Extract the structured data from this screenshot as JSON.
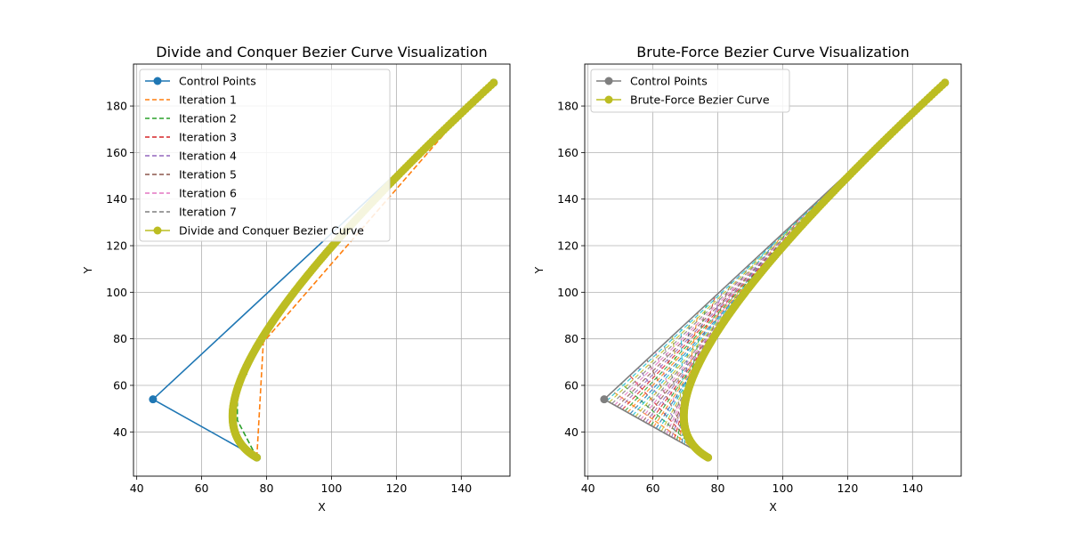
{
  "chart_data": [
    {
      "type": "line",
      "title": "Divide and Conquer Bezier Curve Visualization",
      "xlabel": "X",
      "ylabel": "Y",
      "xlim": [
        39,
        155
      ],
      "ylim": [
        21,
        198
      ],
      "xticks": [
        40,
        60,
        80,
        100,
        120,
        140
      ],
      "yticks": [
        40,
        60,
        80,
        100,
        120,
        140,
        160,
        180
      ],
      "grid": true,
      "legend_loc": "top-left",
      "control_points": [
        [
          77,
          29
        ],
        [
          45,
          54
        ],
        [
          150,
          190
        ]
      ],
      "series": [
        {
          "name": "Control Points",
          "color": "#1f77b4",
          "style": "solid-marker",
          "points": [
            [
              77,
              29
            ],
            [
              45,
              54
            ],
            [
              150,
              190
            ]
          ]
        },
        {
          "name": "Iteration 1",
          "color": "#ff7f0e",
          "style": "dashed",
          "points": [
            [
              77,
              29
            ],
            [
              79,
              78.5
            ],
            [
              136,
              170
            ]
          ]
        },
        {
          "name": "Iteration 2",
          "color": "#2ca02c",
          "style": "dashed",
          "points": [
            [
              77,
              29
            ],
            [
              71,
              45
            ],
            [
              71,
              60
            ],
            [
              74,
              65
            ]
          ]
        },
        {
          "name": "Iteration 3",
          "color": "#d62728",
          "style": "dashed",
          "points": []
        },
        {
          "name": "Iteration 4",
          "color": "#9467bd",
          "style": "dashed",
          "points": []
        },
        {
          "name": "Iteration 5",
          "color": "#8c564b",
          "style": "dashed",
          "points": []
        },
        {
          "name": "Iteration 6",
          "color": "#e377c2",
          "style": "dashed",
          "points": []
        },
        {
          "name": "Iteration 7",
          "color": "#7f7f7f",
          "style": "dashed",
          "points": []
        },
        {
          "name": "Divide and Conquer Bezier Curve",
          "color": "#bcbd22",
          "style": "bezier-marker"
        }
      ]
    },
    {
      "type": "line",
      "title": "Brute-Force Bezier Curve Visualization",
      "xlabel": "X",
      "ylabel": "Y",
      "xlim": [
        39,
        155
      ],
      "ylim": [
        21,
        198
      ],
      "xticks": [
        40,
        60,
        80,
        100,
        120,
        140
      ],
      "yticks": [
        40,
        60,
        80,
        100,
        120,
        140,
        160,
        180
      ],
      "grid": true,
      "legend_loc": "top-left",
      "control_points": [
        [
          77,
          29
        ],
        [
          45,
          54
        ],
        [
          150,
          190
        ]
      ],
      "series": [
        {
          "name": "Control Points",
          "color": "#7f7f7f",
          "style": "solid-marker",
          "points": [
            [
              77,
              29
            ],
            [
              45,
              54
            ],
            [
              150,
              190
            ]
          ]
        },
        {
          "name": "Brute-Force Bezier Curve",
          "color": "#bcbd22",
          "style": "bezier-marker"
        }
      ]
    }
  ]
}
